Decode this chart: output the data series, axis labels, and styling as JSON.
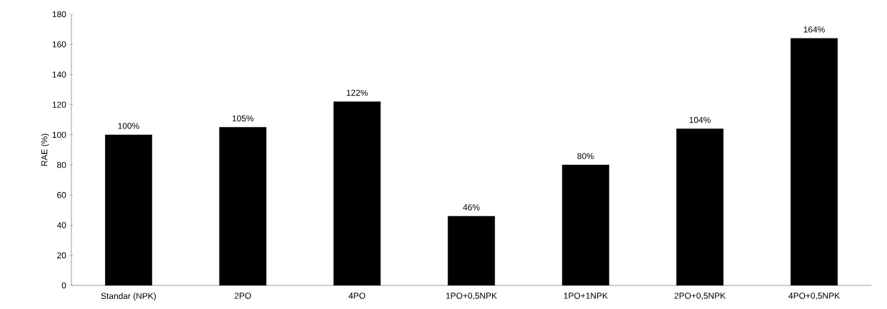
{
  "chart_data": {
    "type": "bar",
    "ylabel": "RAE (%)",
    "categories": [
      "Standar (NPK)",
      "2PO",
      "4PO",
      "1PO+0,5NPK",
      "1PO+1NPK",
      "2PO+0,5NPK",
      "4PO+0,5NPK"
    ],
    "values": [
      100,
      105,
      122,
      46,
      80,
      104,
      164
    ],
    "value_labels": [
      "100%",
      "105%",
      "122%",
      "46%",
      "80%",
      "104%",
      "164%"
    ],
    "color": "#000000",
    "ylim": [
      0,
      180
    ],
    "yticks": [
      0,
      20,
      40,
      60,
      80,
      100,
      120,
      140,
      160,
      180
    ],
    "grid": false
  }
}
